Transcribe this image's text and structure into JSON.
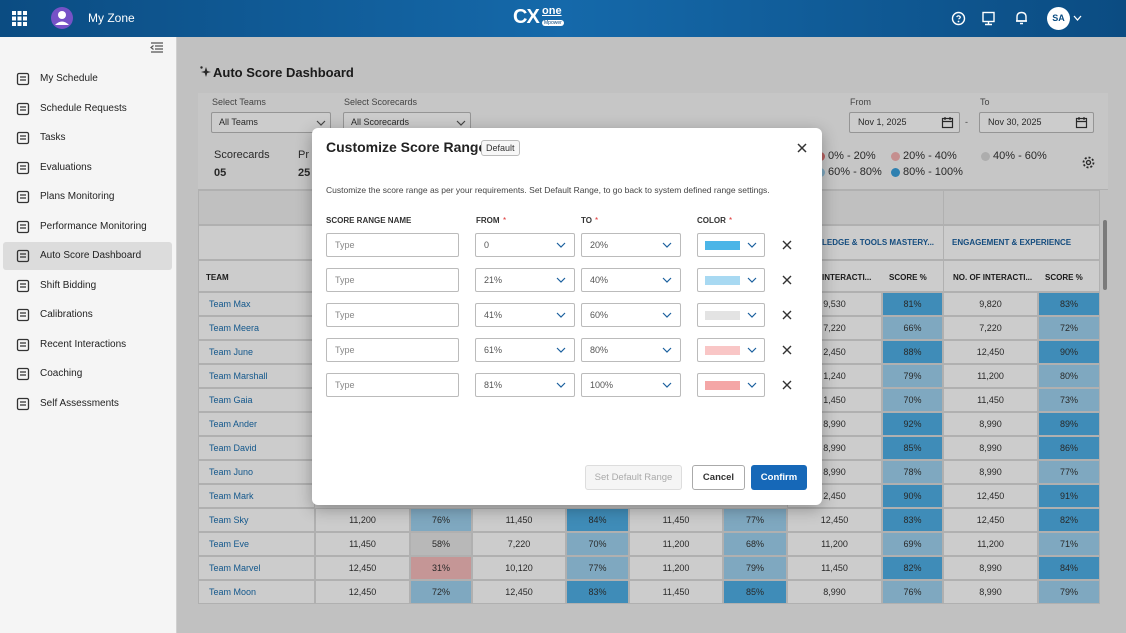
{
  "topbar": {
    "app": "My Zone",
    "logo": {
      "main": "CX",
      "sup": "one",
      "sub": "Mpower"
    },
    "user": "SA"
  },
  "sidebar": [
    "My Schedule",
    "Schedule Requests",
    "Tasks",
    "Evaluations",
    "Plans Monitoring",
    "Performance Monitoring",
    "Auto Score Dashboard",
    "Shift Bidding",
    "Calibrations",
    "Recent Interactions",
    "Coaching",
    "Self Assessments"
  ],
  "dashboard": {
    "title": "Auto Score Dashboard",
    "filters": [
      {
        "label": "Select Teams",
        "value": "All Teams"
      },
      {
        "label": "Select Scorecards",
        "value": "All Scorecards"
      }
    ],
    "from": {
      "label": "From",
      "value": "Nov 1, 2025"
    },
    "separator": "-",
    "to": {
      "label": "To",
      "value": "Nov 30, 2025"
    },
    "summary": [
      {
        "label": "Scorecards",
        "value": "05"
      },
      {
        "label": "Pr",
        "value": "25"
      }
    ],
    "legend": [
      {
        "label": "0% - 20%",
        "color": "#e57a7a"
      },
      {
        "label": "20% - 40%",
        "color": "#f7b3b3"
      },
      {
        "label": "40% - 60%",
        "color": "#d9d9d9"
      },
      {
        "label": "60% - 80%",
        "color": "#9fd3f0"
      },
      {
        "label": "80% - 100%",
        "color": "#3aa0dc"
      }
    ]
  },
  "table": {
    "groups": [
      "LEDGE & TOOLS MASTERY...",
      "ENGAGEMENT & EXPERIENCE"
    ],
    "team_header": "TEAM",
    "columns": [
      "INTERACTI...",
      "SCORE %",
      "NO. OF INTERACTI...",
      "SCORE %"
    ],
    "rows": [
      {
        "team": "Team Max",
        "cells": [
          "9,530",
          {
            "text": "81%",
            "color": "#4fb0e6"
          },
          "9,820",
          {
            "text": "83%",
            "color": "#4fb0e6"
          }
        ]
      },
      {
        "team": "Team Meera",
        "cells": [
          "7,220",
          {
            "text": "66%",
            "color": "#9fd3f0"
          },
          "7,220",
          {
            "text": "72%",
            "color": "#9fd3f0"
          }
        ]
      },
      {
        "team": "Team June",
        "cells": [
          "2,450",
          {
            "text": "88%",
            "color": "#4fb0e6"
          },
          "12,450",
          {
            "text": "90%",
            "color": "#4fb0e6"
          }
        ]
      },
      {
        "team": "Team Marshall",
        "cells": [
          "1,240",
          {
            "text": "79%",
            "color": "#9fd3f0"
          },
          "11,200",
          {
            "text": "80%",
            "color": "#9fd3f0"
          }
        ]
      },
      {
        "team": "Team Gaia",
        "cells": [
          "1,450",
          {
            "text": "70%",
            "color": "#9fd3f0"
          },
          "11,450",
          {
            "text": "73%",
            "color": "#9fd3f0"
          }
        ]
      },
      {
        "team": "Team Ander",
        "cells": [
          "8,990",
          {
            "text": "92%",
            "color": "#4fb0e6"
          },
          "8,990",
          {
            "text": "89%",
            "color": "#4fb0e6"
          }
        ]
      },
      {
        "team": "Team David",
        "cells": [
          "8,990",
          {
            "text": "85%",
            "color": "#4fb0e6"
          },
          "8,990",
          {
            "text": "86%",
            "color": "#4fb0e6"
          }
        ]
      },
      {
        "team": "Team Juno",
        "cells": [
          "8,990",
          {
            "text": "78%",
            "color": "#9fd3f0"
          },
          "8,990",
          {
            "text": "77%",
            "color": "#9fd3f0"
          }
        ]
      },
      {
        "team": "Team Mark",
        "cells": [
          "2,450",
          {
            "text": "90%",
            "color": "#4fb0e6"
          },
          "12,450",
          {
            "text": "91%",
            "color": "#4fb0e6"
          }
        ]
      },
      {
        "team": "Team Sky",
        "cells": [
          "11,200",
          {
            "text": "76%",
            "color": "#9fd3f0"
          },
          "11,450",
          {
            "text": "84%",
            "color": "#4fb0e6"
          },
          "11,450",
          {
            "text": "77%",
            "color": "#9fd3f0"
          },
          "12,450",
          {
            "text": "83%",
            "color": "#4fb0e6"
          },
          "12,450",
          {
            "text": "82%",
            "color": "#4fb0e6"
          }
        ]
      },
      {
        "team": "Team Eve",
        "cells": [
          "11,450",
          {
            "text": "58%",
            "color": "#e6e6e6"
          },
          "7,220",
          {
            "text": "70%",
            "color": "#9fd3f0"
          },
          "11,200",
          {
            "text": "68%",
            "color": "#9fd3f0"
          },
          "11,200",
          {
            "text": "69%",
            "color": "#9fd3f0"
          },
          "11,200",
          {
            "text": "71%",
            "color": "#9fd3f0"
          }
        ]
      },
      {
        "team": "Team Marvel",
        "cells": [
          "12,450",
          {
            "text": "31%",
            "color": "#f7bcbc"
          },
          "10,120",
          {
            "text": "77%",
            "color": "#9fd3f0"
          },
          "11,200",
          {
            "text": "79%",
            "color": "#9fd3f0"
          },
          "11,450",
          {
            "text": "82%",
            "color": "#4fb0e6"
          },
          "8,990",
          {
            "text": "84%",
            "color": "#4fb0e6"
          }
        ]
      },
      {
        "team": "Team Moon",
        "cells": [
          "12,450",
          {
            "text": "72%",
            "color": "#9fd3f0"
          },
          "12,450",
          {
            "text": "83%",
            "color": "#4fb0e6"
          },
          "11,450",
          {
            "text": "85%",
            "color": "#4fb0e6"
          },
          "8,990",
          {
            "text": "76%",
            "color": "#9fd3f0"
          },
          "8,990",
          {
            "text": "79%",
            "color": "#9fd3f0"
          }
        ]
      }
    ]
  },
  "modal": {
    "title": "Customize Score Range",
    "badge": "Default",
    "description": "Customize the score range as per your requirements. Set Default Range, to go back to system defined range settings.",
    "headers": [
      {
        "label": "SCORE RANGE NAME"
      },
      {
        "label": "FROM",
        "mark": "*"
      },
      {
        "label": "TO",
        "mark": "*"
      },
      {
        "label": "COLOR",
        "mark": "*"
      }
    ],
    "rows": [
      {
        "name": "Type",
        "from": "0",
        "to": "20%",
        "color": "#4bb5e7"
      },
      {
        "name": "Type",
        "from": "21%",
        "to": "40%",
        "color": "#a8d9f2"
      },
      {
        "name": "Type",
        "from": "41%",
        "to": "60%",
        "color": "#e3e3e3"
      },
      {
        "name": "Type",
        "from": "61%",
        "to": "80%",
        "color": "#f9c6c6"
      },
      {
        "name": "Type",
        "from": "81%",
        "to": "100%",
        "color": "#f4a6a6"
      }
    ],
    "buttons": {
      "default": "Set Default Range",
      "cancel": "Cancel",
      "confirm": "Confirm"
    }
  }
}
